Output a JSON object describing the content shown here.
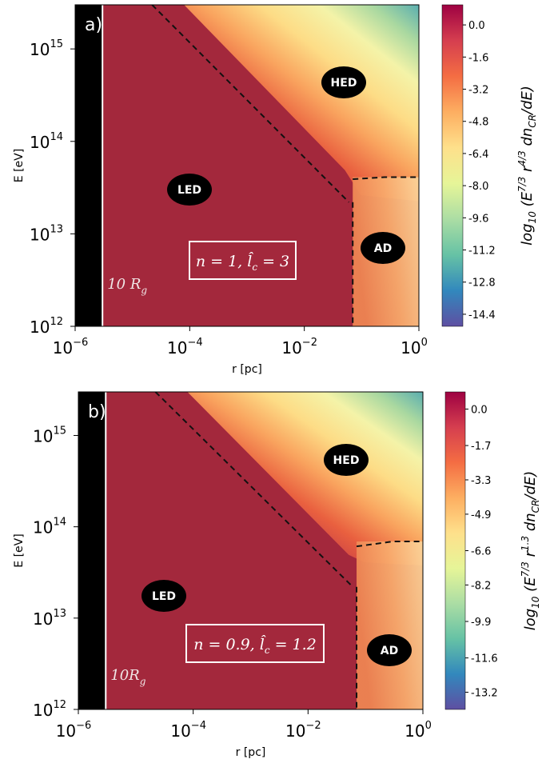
{
  "colors": {
    "dark_red": "#a3283c",
    "black_strip": "#000000",
    "colormap": [
      "#5e4fa2",
      "#3288bd",
      "#66c2a5",
      "#abdda4",
      "#e6f598",
      "#fee08b",
      "#fdae61",
      "#f46d43",
      "#d53e4f",
      "#9e0142"
    ]
  },
  "chart_data": [
    {
      "type": "heatmap",
      "panel_label": "a)",
      "xlabel": "r [pc]",
      "ylabel": "E [eV]",
      "x_scale": "log",
      "y_scale": "log",
      "xlim": [
        1e-06,
        1
      ],
      "ylim": [
        1000000000000.0,
        3000000000000000.0
      ],
      "x_ticks": [
        {
          "base": "10",
          "exp": "−6"
        },
        {
          "base": "10",
          "exp": "−4"
        },
        {
          "base": "10",
          "exp": "−2"
        },
        {
          "base": "10",
          "exp": "0"
        }
      ],
      "y_ticks": [
        {
          "base": "10",
          "exp": "12"
        },
        {
          "base": "10",
          "exp": "13"
        },
        {
          "base": "10",
          "exp": "14"
        },
        {
          "base": "10",
          "exp": "15"
        }
      ],
      "regions": [
        "HED",
        "LED",
        "AD"
      ],
      "inner_limit_label": "10 R",
      "inner_limit_sub": "g",
      "inner_limit_r_pc": 3e-06,
      "param_text": "n = 1, l̂",
      "param_sub": "c",
      "param_tail": " = 3",
      "boundary_hed": [
        [
          2.2e-05,
          3000000000000000.0
        ],
        [
          0.06,
          22000000000000.0
        ]
      ],
      "boundary_ad": [
        [
          0.07,
          22000000000000.0
        ],
        [
          0.07,
          1000000000000.0
        ]
      ],
      "boundary_ad_top": [
        [
          0.07,
          39000000000000.0
        ],
        [
          0.25,
          41000000000000.0
        ],
        [
          1,
          41000000000000.0
        ]
      ],
      "colorbar": {
        "label_prefix": "log",
        "label_prefix_sub": "10",
        "label_body": " (E",
        "sup1": "7/3",
        "mid": " r",
        "sup2": "4/3",
        "tail": " dn",
        "tail_sub": "CR",
        "end": "/dE)",
        "range": [
          -15.0,
          1.0
        ],
        "ticks": [
          "0.0",
          "-1.6",
          "-3.2",
          "-4.8",
          "-6.4",
          "-8.0",
          "-9.6",
          "-11.2",
          "-12.8",
          "-14.4"
        ]
      }
    },
    {
      "type": "heatmap",
      "panel_label": "b)",
      "xlabel": "r [pc]",
      "ylabel": "E [eV]",
      "x_scale": "log",
      "y_scale": "log",
      "xlim": [
        1e-06,
        1
      ],
      "ylim": [
        1000000000000.0,
        3000000000000000.0
      ],
      "x_ticks": [
        {
          "base": "10",
          "exp": "−6"
        },
        {
          "base": "10",
          "exp": "−4"
        },
        {
          "base": "10",
          "exp": "−2"
        },
        {
          "base": "10",
          "exp": "0"
        }
      ],
      "y_ticks": [
        {
          "base": "10",
          "exp": "12"
        },
        {
          "base": "10",
          "exp": "13"
        },
        {
          "base": "10",
          "exp": "14"
        },
        {
          "base": "10",
          "exp": "15"
        }
      ],
      "regions": [
        "HED",
        "LED",
        "AD"
      ],
      "inner_limit_label": "10R",
      "inner_limit_sub": "g",
      "inner_limit_r_pc": 3e-06,
      "param_text": "n = 0.9, l̂",
      "param_sub": "c",
      "param_tail": " = 1.2",
      "boundary_hed": [
        [
          2.2e-05,
          3000000000000000.0
        ],
        [
          0.06,
          22000000000000.0
        ]
      ],
      "boundary_ad": [
        [
          0.07,
          22000000000000.0
        ],
        [
          0.07,
          1000000000000.0
        ]
      ],
      "boundary_ad_top": [
        [
          0.07,
          61000000000000.0
        ],
        [
          0.3,
          69000000000000.0
        ],
        [
          1,
          69000000000000.0
        ]
      ],
      "colorbar": {
        "label_prefix": "log",
        "label_prefix_sub": "10",
        "label_body": " (E",
        "sup1": "7/3",
        "mid": " r",
        "sup2": "1.3",
        "tail": " dn",
        "tail_sub": "CR",
        "end": "/dE)",
        "range": [
          -14.0,
          0.8
        ],
        "ticks": [
          "0.0",
          "-1.7",
          "-3.3",
          "-4.9",
          "-6.6",
          "-8.2",
          "-9.9",
          "-11.6",
          "-13.2"
        ]
      }
    }
  ]
}
